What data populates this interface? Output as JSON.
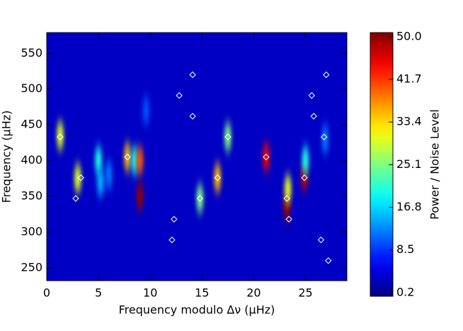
{
  "chart_data": {
    "type": "heatmap",
    "x_label": "Frequency modulo Δν (μHz)",
    "y_label": "Frequency (μHz)",
    "colorbar_label": "Power / Noise Level",
    "xlim": [
      0,
      29
    ],
    "ylim": [
      232,
      579
    ],
    "xticks": [
      0,
      5,
      10,
      15,
      20,
      25
    ],
    "yticks": [
      250,
      300,
      350,
      400,
      450,
      500,
      550
    ],
    "clim": [
      -0.5,
      50.8
    ],
    "cticks": [
      {
        "value": 50,
        "label": "50.0"
      },
      41.7,
      33.4,
      25.1,
      16.8,
      8.5,
      0.2
    ],
    "background": 3,
    "heatmap": [
      {
        "x": 1.3,
        "y": 435,
        "value": 30
      },
      {
        "x": 3.0,
        "y": 375,
        "value": 30
      },
      {
        "x": 5.0,
        "y": 400,
        "value": 20
      },
      {
        "x": 5.2,
        "y": 370,
        "value": 15
      },
      {
        "x": 6.0,
        "y": 380,
        "value": 12
      },
      {
        "x": 7.8,
        "y": 405,
        "value": 35
      },
      {
        "x": 8.5,
        "y": 400,
        "value": 20
      },
      {
        "x": 9.0,
        "y": 400,
        "value": 40
      },
      {
        "x": 9.0,
        "y": 350,
        "value": 50
      },
      {
        "x": 9.6,
        "y": 470,
        "value": 10
      },
      {
        "x": 14.8,
        "y": 347,
        "value": 25
      },
      {
        "x": 16.5,
        "y": 376,
        "value": 35
      },
      {
        "x": 17.5,
        "y": 433,
        "value": 25
      },
      {
        "x": 21.2,
        "y": 405,
        "value": 45
      },
      {
        "x": 23.2,
        "y": 335,
        "value": 50
      },
      {
        "x": 23.3,
        "y": 360,
        "value": 30
      },
      {
        "x": 24.9,
        "y": 378,
        "value": 48
      },
      {
        "x": 25.0,
        "y": 400,
        "value": 20
      },
      {
        "x": 26.9,
        "y": 430,
        "value": 12
      }
    ],
    "points": {
      "color": "#ffffff",
      "x": [
        1.3,
        2.8,
        3.3,
        7.8,
        12.1,
        12.3,
        12.8,
        14.1,
        14.1,
        14.8,
        16.5,
        17.5,
        21.2,
        23.2,
        23.4,
        24.9,
        25.6,
        25.8,
        26.5,
        26.8,
        27.0,
        27.2
      ],
      "y": [
        433,
        347,
        376,
        405,
        289,
        318,
        491,
        520,
        462,
        347,
        376,
        433,
        405,
        347,
        318,
        376,
        491,
        462,
        289,
        433,
        520,
        260
      ]
    }
  }
}
